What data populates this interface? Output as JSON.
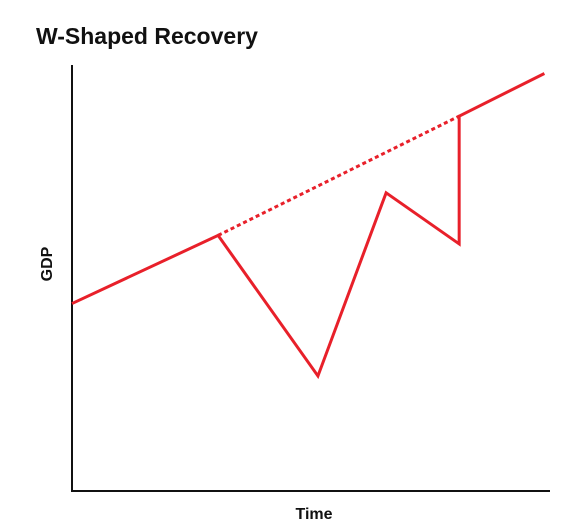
{
  "chart_data": {
    "type": "line",
    "title": "W-Shaped Recovery",
    "xlabel": "Time",
    "ylabel": "GDP",
    "grid": false,
    "legend": "none",
    "xlim": [
      0,
      10
    ],
    "ylim": [
      0,
      10
    ],
    "series": [
      {
        "style": "solid",
        "color": "#e8202a",
        "points": [
          {
            "x": 0,
            "y": 4.4
          },
          {
            "x": 3.0,
            "y": 6.0
          },
          {
            "x": 5.05,
            "y": 2.7
          },
          {
            "x": 6.45,
            "y": 7.0
          },
          {
            "x": 7.95,
            "y": 5.8
          },
          {
            "x": 7.95,
            "y": 8.8
          },
          {
            "x": 9.7,
            "y": 9.8
          }
        ]
      },
      {
        "style": "dotted",
        "color": "#e8202a",
        "points": [
          {
            "x": 3.0,
            "y": 6.0
          },
          {
            "x": 7.95,
            "y": 8.8
          }
        ]
      }
    ]
  }
}
